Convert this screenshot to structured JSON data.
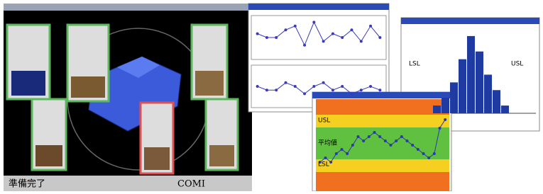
{
  "status_bar": {
    "left": "準備完了",
    "right": "COMI"
  },
  "control_chart": {
    "xbar": {
      "values": [
        6,
        5,
        5,
        7,
        8,
        3,
        9,
        4,
        6,
        5,
        7,
        4,
        8,
        5
      ],
      "ylim": [
        0,
        10
      ],
      "color": "#3a3ac0"
    },
    "range": {
      "values": [
        5,
        4,
        4,
        6,
        5,
        3,
        5,
        6,
        4,
        5,
        3,
        4,
        5,
        4
      ],
      "ylim": [
        0,
        10
      ],
      "color": "#3a3ac0"
    }
  },
  "zone_chart": {
    "labels": [
      "USL",
      "平均値",
      "LSL"
    ],
    "values": [
      3,
      3.5,
      3,
      4,
      4.5,
      4,
      5,
      6,
      5.5,
      6,
      6.5,
      6,
      5.5,
      5,
      5.5,
      6,
      5.5,
      5,
      4.5,
      4,
      3.5,
      4,
      7,
      8
    ],
    "ylim": [
      0,
      10
    ],
    "color": "#2a3aa8"
  },
  "histogram": {
    "labels": [
      "USL",
      "LSL"
    ],
    "counts": [
      1,
      2,
      4,
      7,
      10,
      8,
      5,
      3,
      1
    ],
    "ylim": [
      0,
      11
    ],
    "color": "#1f3aa0"
  }
}
